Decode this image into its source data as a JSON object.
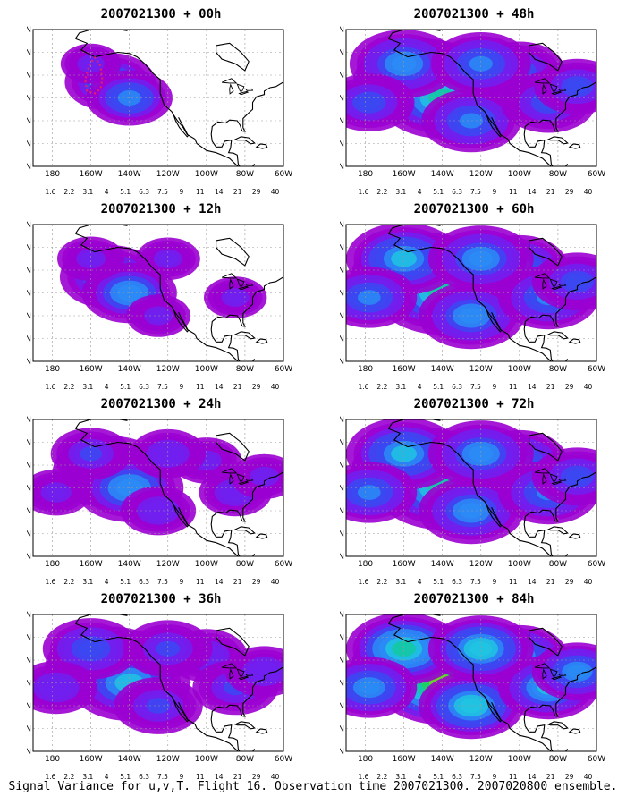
{
  "footer": "Signal Variance for u,v,T. Flight 16. Observation time 2007021300. 2007020800 ensemble.",
  "map": {
    "lat_labels": [
      "70N",
      "60N",
      "50N",
      "40N",
      "30N",
      "20N",
      "10N"
    ],
    "lon_labels": [
      "180",
      "160W",
      "140W",
      "120W",
      "100W",
      "80W",
      "60W"
    ],
    "lon_range": [
      -190,
      -60
    ],
    "lat_range": [
      10,
      70
    ]
  },
  "colorbar": {
    "labels": [
      "1.6",
      "2.2",
      "3.1",
      "4",
      "5.1",
      "6.3",
      "7.5",
      "9",
      "11",
      "14",
      "21",
      "29",
      "40"
    ],
    "colors": [
      "#9b00d2",
      "#7020f0",
      "#3a49f2",
      "#2a8cf5",
      "#20c4e0",
      "#12c8a0",
      "#1cd25a",
      "#7ad41c",
      "#c8d414",
      "#f2c214",
      "#f29a14",
      "#f25a26",
      "#f21e8c"
    ]
  },
  "panels": [
    {
      "title": "2007021300 + 00h",
      "intensity": 0.45,
      "spread": 0.45,
      "marker": true
    },
    {
      "title": "2007021300 + 12h",
      "intensity": 0.5,
      "spread": 0.55,
      "marker": false
    },
    {
      "title": "2007021300 + 24h",
      "intensity": 0.55,
      "spread": 0.7,
      "marker": false
    },
    {
      "title": "2007021300 + 36h",
      "intensity": 0.6,
      "spread": 0.85,
      "marker": false
    },
    {
      "title": "2007021300 + 48h",
      "intensity": 0.65,
      "spread": 0.95,
      "marker": false
    },
    {
      "title": "2007021300 + 60h",
      "intensity": 0.75,
      "spread": 1.0,
      "marker": false
    },
    {
      "title": "2007021300 + 72h",
      "intensity": 0.85,
      "spread": 1.0,
      "marker": false
    },
    {
      "title": "2007021300 + 84h",
      "intensity": 0.95,
      "spread": 1.0,
      "marker": false
    }
  ]
}
